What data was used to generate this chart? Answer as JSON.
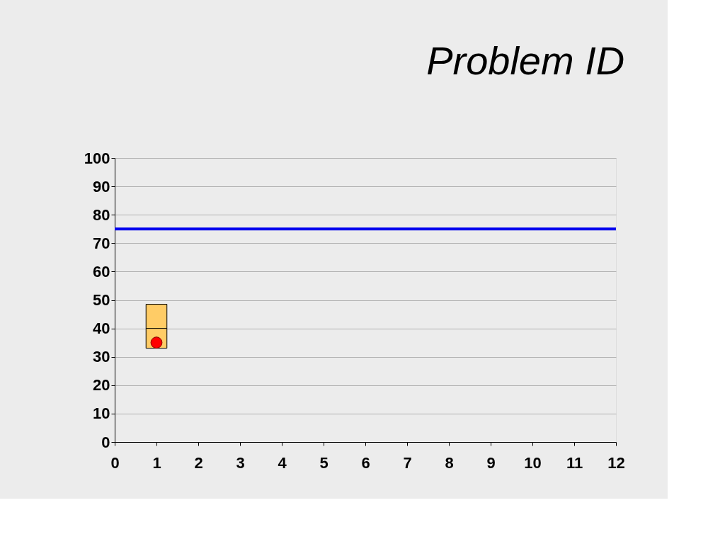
{
  "chart_data": {
    "type": "box",
    "title": "Problem ID",
    "x": [
      1
    ],
    "series": [
      {
        "color": "#ffcc66",
        "boxes": [
          {
            "low": 33,
            "q1": 33,
            "median": 40,
            "q3": 48.5,
            "high": 48.5
          }
        ]
      },
      {
        "type": "scatter",
        "color": "#ff0000",
        "x": [
          1
        ],
        "values": [
          35
        ]
      }
    ],
    "xlim": [
      0,
      12
    ],
    "xticks": [
      0,
      1,
      2,
      3,
      4,
      5,
      6,
      7,
      8,
      9,
      10,
      11,
      12
    ],
    "ylim": [
      0,
      100
    ],
    "yticks": [
      0,
      10,
      20,
      30,
      40,
      50,
      60,
      70,
      80,
      90,
      100
    ],
    "ref_lines": [
      {
        "axis": "y",
        "value": 75,
        "label": null,
        "color": "#0000ee"
      }
    ],
    "grid": "y",
    "legend": false,
    "marker": "circle"
  }
}
